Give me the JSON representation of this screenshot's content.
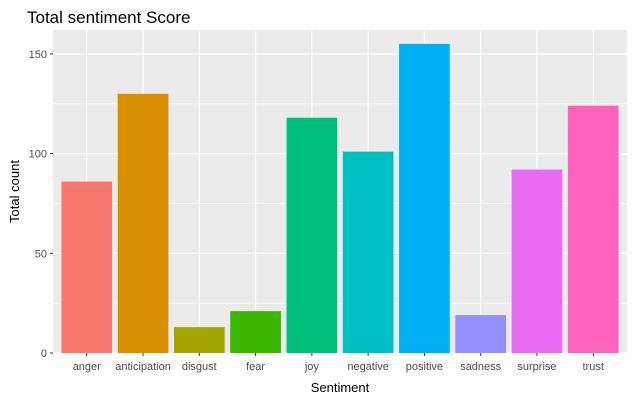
{
  "chart_data": {
    "type": "bar",
    "title": "Total sentiment Score",
    "xlabel": "Sentiment",
    "ylabel": "Total count",
    "categories": [
      "anger",
      "anticipation",
      "disgust",
      "fear",
      "joy",
      "negative",
      "positive",
      "sadness",
      "surprise",
      "trust"
    ],
    "values": [
      86,
      130,
      13,
      21,
      118,
      101,
      155,
      19,
      92,
      124
    ],
    "colors": [
      "#F8766D",
      "#D89000",
      "#A3A500",
      "#39B600",
      "#00BF7D",
      "#00BFC4",
      "#00B0F6",
      "#9590FF",
      "#E76BF3",
      "#FF62BC"
    ],
    "yticks": [
      0,
      50,
      100,
      150
    ],
    "ylim": [
      0,
      162
    ],
    "grid": true,
    "legend": "none",
    "panel_background": "#EBEBEB",
    "grid_color": "#FFFFFF"
  }
}
